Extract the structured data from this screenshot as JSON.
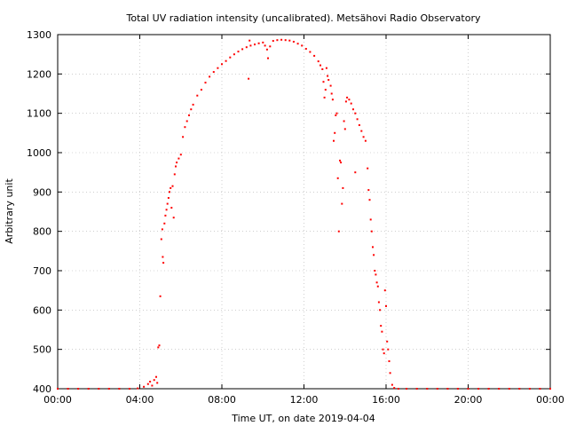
{
  "chart_data": {
    "type": "scatter",
    "title": "Total UV radiation intensity (uncalibrated). Metsähovi Radio Observatory",
    "xlabel": "Time UT, on date 2019-04-04",
    "ylabel": "Arbitrary unit",
    "x_unit": "hours",
    "xlim": [
      0,
      24
    ],
    "ylim": [
      400,
      1300
    ],
    "grid": true,
    "marker_color": "#ff0000",
    "x_ticks": [
      {
        "value": 0,
        "label": "00:00"
      },
      {
        "value": 4,
        "label": "04:00"
      },
      {
        "value": 8,
        "label": "08:00"
      },
      {
        "value": 12,
        "label": "12:00"
      },
      {
        "value": 16,
        "label": "16:00"
      },
      {
        "value": 20,
        "label": "20:00"
      },
      {
        "value": 24,
        "label": "00:00"
      }
    ],
    "y_ticks": [
      {
        "value": 400,
        "label": "400"
      },
      {
        "value": 500,
        "label": "500"
      },
      {
        "value": 600,
        "label": "600"
      },
      {
        "value": 700,
        "label": "700"
      },
      {
        "value": 800,
        "label": "800"
      },
      {
        "value": 900,
        "label": "900"
      },
      {
        "value": 1000,
        "label": "1000"
      },
      {
        "value": 1100,
        "label": "1100"
      },
      {
        "value": 1200,
        "label": "1200"
      },
      {
        "value": 1300,
        "label": "1300"
      }
    ],
    "series": [
      {
        "points": [
          [
            0.0,
            400
          ],
          [
            0.5,
            400
          ],
          [
            1.0,
            400
          ],
          [
            1.5,
            400
          ],
          [
            2.0,
            400
          ],
          [
            2.5,
            400
          ],
          [
            3.0,
            400
          ],
          [
            3.5,
            400
          ],
          [
            3.9,
            401
          ],
          [
            4.2,
            405
          ],
          [
            4.4,
            412
          ],
          [
            4.5,
            418
          ],
          [
            4.6,
            408
          ],
          [
            4.7,
            422
          ],
          [
            4.8,
            430
          ],
          [
            4.85,
            415
          ],
          [
            4.9,
            505
          ],
          [
            4.95,
            510
          ],
          [
            5.0,
            635
          ],
          [
            5.05,
            780
          ],
          [
            5.1,
            805
          ],
          [
            5.12,
            735
          ],
          [
            5.15,
            720
          ],
          [
            5.2,
            820
          ],
          [
            5.25,
            840
          ],
          [
            5.3,
            855
          ],
          [
            5.35,
            870
          ],
          [
            5.4,
            885
          ],
          [
            5.45,
            900
          ],
          [
            5.5,
            910
          ],
          [
            5.55,
            860
          ],
          [
            5.6,
            915
          ],
          [
            5.65,
            835
          ],
          [
            5.7,
            945
          ],
          [
            5.75,
            965
          ],
          [
            5.8,
            975
          ],
          [
            5.9,
            985
          ],
          [
            6.0,
            995
          ],
          [
            6.1,
            1040
          ],
          [
            6.2,
            1065
          ],
          [
            6.3,
            1080
          ],
          [
            6.4,
            1095
          ],
          [
            6.5,
            1110
          ],
          [
            6.6,
            1122
          ],
          [
            6.8,
            1145
          ],
          [
            7.0,
            1160
          ],
          [
            7.2,
            1178
          ],
          [
            7.4,
            1193
          ],
          [
            7.6,
            1205
          ],
          [
            7.8,
            1215
          ],
          [
            8.0,
            1225
          ],
          [
            8.2,
            1233
          ],
          [
            8.4,
            1242
          ],
          [
            8.6,
            1250
          ],
          [
            8.8,
            1257
          ],
          [
            9.0,
            1263
          ],
          [
            9.2,
            1268
          ],
          [
            9.3,
            1188
          ],
          [
            9.35,
            1285
          ],
          [
            9.4,
            1272
          ],
          [
            9.6,
            1275
          ],
          [
            9.8,
            1278
          ],
          [
            10.0,
            1280
          ],
          [
            10.1,
            1272
          ],
          [
            10.2,
            1262
          ],
          [
            10.25,
            1240
          ],
          [
            10.35,
            1270
          ],
          [
            10.5,
            1284
          ],
          [
            10.7,
            1286
          ],
          [
            10.9,
            1287
          ],
          [
            11.1,
            1286
          ],
          [
            11.3,
            1285
          ],
          [
            11.5,
            1282
          ],
          [
            11.7,
            1277
          ],
          [
            11.9,
            1272
          ],
          [
            12.1,
            1264
          ],
          [
            12.3,
            1256
          ],
          [
            12.5,
            1246
          ],
          [
            12.7,
            1232
          ],
          [
            12.8,
            1222
          ],
          [
            12.9,
            1212
          ],
          [
            12.95,
            1180
          ],
          [
            13.0,
            1140
          ],
          [
            13.05,
            1160
          ],
          [
            13.1,
            1215
          ],
          [
            13.15,
            1195
          ],
          [
            13.2,
            1185
          ],
          [
            13.3,
            1170
          ],
          [
            13.35,
            1150
          ],
          [
            13.4,
            1135
          ],
          [
            13.45,
            1030
          ],
          [
            13.5,
            1050
          ],
          [
            13.55,
            1095
          ],
          [
            13.6,
            1100
          ],
          [
            13.65,
            935
          ],
          [
            13.7,
            800
          ],
          [
            13.75,
            980
          ],
          [
            13.8,
            975
          ],
          [
            13.85,
            870
          ],
          [
            13.9,
            910
          ],
          [
            13.95,
            1080
          ],
          [
            14.0,
            1060
          ],
          [
            14.05,
            1130
          ],
          [
            14.1,
            1140
          ],
          [
            14.2,
            1135
          ],
          [
            14.3,
            1125
          ],
          [
            14.4,
            1110
          ],
          [
            14.5,
            950
          ],
          [
            14.5,
            1100
          ],
          [
            14.6,
            1085
          ],
          [
            14.7,
            1070
          ],
          [
            14.8,
            1055
          ],
          [
            14.9,
            1040
          ],
          [
            15.0,
            1030
          ],
          [
            15.1,
            960
          ],
          [
            15.15,
            905
          ],
          [
            15.2,
            880
          ],
          [
            15.25,
            830
          ],
          [
            15.3,
            800
          ],
          [
            15.35,
            760
          ],
          [
            15.4,
            740
          ],
          [
            15.45,
            700
          ],
          [
            15.5,
            690
          ],
          [
            15.55,
            670
          ],
          [
            15.6,
            660
          ],
          [
            15.65,
            620
          ],
          [
            15.7,
            600
          ],
          [
            15.75,
            560
          ],
          [
            15.8,
            545
          ],
          [
            15.85,
            500
          ],
          [
            15.9,
            490
          ],
          [
            15.95,
            650
          ],
          [
            16.0,
            610
          ],
          [
            16.05,
            520
          ],
          [
            16.1,
            500
          ],
          [
            16.15,
            470
          ],
          [
            16.2,
            440
          ],
          [
            16.3,
            410
          ],
          [
            16.4,
            402
          ],
          [
            16.6,
            400
          ],
          [
            17.0,
            400
          ],
          [
            17.5,
            400
          ],
          [
            18.0,
            400
          ],
          [
            18.5,
            400
          ],
          [
            19.0,
            400
          ],
          [
            19.5,
            400
          ],
          [
            20.0,
            400
          ],
          [
            20.5,
            400
          ],
          [
            21.0,
            400
          ],
          [
            21.5,
            400
          ],
          [
            22.0,
            400
          ],
          [
            22.5,
            400
          ],
          [
            23.0,
            400
          ],
          [
            23.5,
            400
          ],
          [
            24.0,
            400
          ]
        ]
      }
    ]
  }
}
